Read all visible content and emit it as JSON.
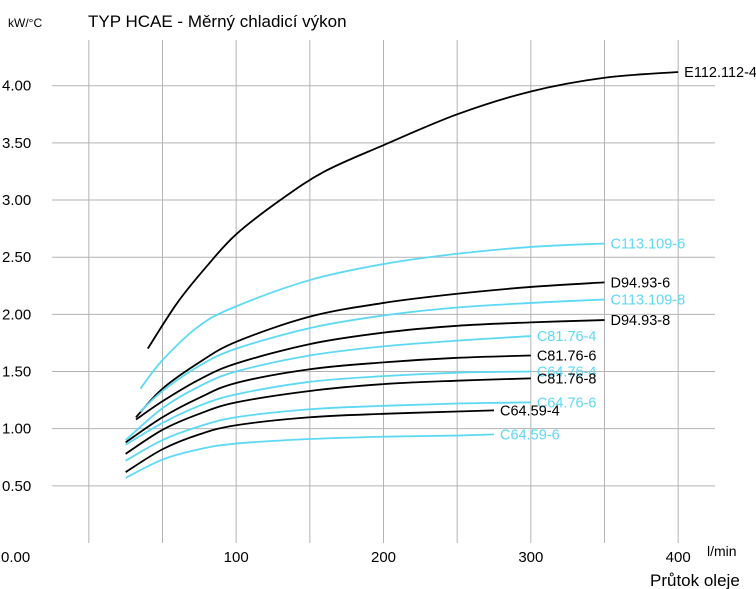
{
  "chart_data": {
    "type": "line",
    "title": "TYP HCAE - Měrný chladicí výkon",
    "ylabel": "kW/°C",
    "xlabel": "Průtok oleje",
    "xunit": "l/min",
    "xlim": [
      -25,
      425
    ],
    "ylim": [
      0,
      4.4
    ],
    "x_ticks": [
      100,
      200,
      300,
      400
    ],
    "x_ticks_labels": [
      "100",
      "200",
      "300",
      "400"
    ],
    "origin_label": "0.00",
    "y_ticks": [
      0.5,
      1.0,
      1.5,
      2.0,
      2.5,
      3.0,
      3.5,
      4.0
    ],
    "y_ticks_labels": [
      "0.50",
      "1.00",
      "1.50",
      "2.00",
      "2.50",
      "3.00",
      "3.50",
      "4.00"
    ],
    "x_grid": [
      0,
      50,
      100,
      150,
      200,
      250,
      300,
      350,
      400
    ],
    "y_grid": [
      0.5,
      1.0,
      1.5,
      2.0,
      2.5,
      3.0,
      3.5,
      4.0
    ],
    "grid": true,
    "series": [
      {
        "name": "E112.112-4",
        "color": "#000000",
        "x": [
          40,
          60,
          80,
          100,
          130,
          160,
          200,
          250,
          300,
          350,
          400
        ],
        "y": [
          1.7,
          2.1,
          2.42,
          2.7,
          3.0,
          3.25,
          3.48,
          3.75,
          3.95,
          4.07,
          4.12
        ]
      },
      {
        "name": "C113.109-6",
        "color": "#5dd9f4",
        "x": [
          35,
          50,
          75,
          100,
          150,
          200,
          250,
          300,
          350
        ],
        "y": [
          1.35,
          1.6,
          1.9,
          2.07,
          2.3,
          2.44,
          2.53,
          2.59,
          2.62
        ]
      },
      {
        "name": "D94.93-6",
        "color": "#000000",
        "x": [
          32,
          50,
          75,
          100,
          150,
          200,
          250,
          300,
          350
        ],
        "y": [
          1.1,
          1.35,
          1.58,
          1.76,
          1.98,
          2.1,
          2.18,
          2.24,
          2.28
        ]
      },
      {
        "name": "C113.109-8",
        "color": "#5dd9f4",
        "x": [
          35,
          50,
          75,
          100,
          150,
          200,
          250,
          300,
          350
        ],
        "y": [
          1.15,
          1.33,
          1.55,
          1.7,
          1.88,
          1.99,
          2.06,
          2.1,
          2.13
        ]
      },
      {
        "name": "D94.93-8",
        "color": "#000000",
        "x": [
          32,
          50,
          75,
          100,
          150,
          200,
          250,
          300,
          350
        ],
        "y": [
          1.08,
          1.24,
          1.43,
          1.57,
          1.74,
          1.84,
          1.9,
          1.93,
          1.95
        ]
      },
      {
        "name": "C81.76-4",
        "color": "#5dd9f4",
        "x": [
          25,
          50,
          75,
          100,
          150,
          200,
          250,
          300
        ],
        "y": [
          0.9,
          1.18,
          1.37,
          1.5,
          1.64,
          1.72,
          1.77,
          1.81
        ]
      },
      {
        "name": "C81.76-6",
        "color": "#000000",
        "x": [
          25,
          50,
          75,
          100,
          150,
          200,
          250,
          300
        ],
        "y": [
          0.88,
          1.1,
          1.27,
          1.4,
          1.52,
          1.58,
          1.62,
          1.64
        ]
      },
      {
        "name": "C64.76-4",
        "color": "#5dd9f4",
        "x": [
          25,
          50,
          75,
          100,
          150,
          200,
          250,
          300
        ],
        "y": [
          0.86,
          1.05,
          1.2,
          1.3,
          1.41,
          1.46,
          1.49,
          1.5
        ]
      },
      {
        "name": "C81.76-8",
        "color": "#000000",
        "x": [
          25,
          50,
          75,
          100,
          150,
          200,
          250,
          300
        ],
        "y": [
          0.78,
          0.99,
          1.13,
          1.23,
          1.33,
          1.39,
          1.42,
          1.44
        ]
      },
      {
        "name": "C64.76-6",
        "color": "#5dd9f4",
        "x": [
          25,
          50,
          75,
          100,
          150,
          200,
          250,
          300
        ],
        "y": [
          0.72,
          0.9,
          1.02,
          1.1,
          1.17,
          1.2,
          1.22,
          1.23
        ]
      },
      {
        "name": "C64.59-4",
        "color": "#000000",
        "x": [
          25,
          50,
          75,
          100,
          150,
          200,
          250,
          275
        ],
        "y": [
          0.62,
          0.82,
          0.95,
          1.03,
          1.1,
          1.13,
          1.15,
          1.16
        ]
      },
      {
        "name": "C64.59-6",
        "color": "#5dd9f4",
        "x": [
          25,
          50,
          75,
          100,
          150,
          200,
          250,
          275
        ],
        "y": [
          0.57,
          0.73,
          0.82,
          0.87,
          0.91,
          0.93,
          0.94,
          0.95
        ]
      }
    ]
  }
}
